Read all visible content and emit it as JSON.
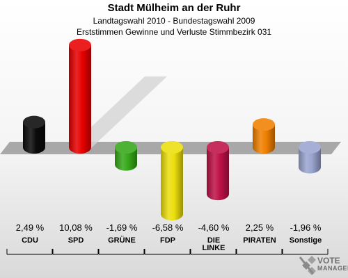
{
  "header": {
    "title": "Stadt Mülheim an der Ruhr",
    "subtitle": "Landtagswahl 2010 - Bundestagswahl 2009",
    "description": "Erststimmen Gewinne und Verluste Stimmbezirk 031"
  },
  "chart_data": {
    "type": "bar",
    "categories": [
      "CDU",
      "SPD",
      "GRÜNE",
      "FDP",
      "DIE LINKE",
      "PIRATEN",
      "Sonstige"
    ],
    "values": [
      2.49,
      10.08,
      -1.69,
      -6.58,
      -4.6,
      2.25,
      -1.96
    ],
    "value_labels": [
      "2,49 %",
      "10,08 %",
      "-1,69 %",
      "-6,58 %",
      "-4,60 %",
      "2,25 %",
      "-1,96 %"
    ],
    "colors": [
      "#0a0a0a",
      "#e80000",
      "#36a818",
      "#ecdf0c",
      "#be1148",
      "#f08000",
      "#9aa4cf"
    ],
    "title": "Stadt Mülheim an der Ruhr",
    "xlabel": "",
    "ylabel": "",
    "grid": false,
    "legend": "none"
  },
  "logo": {
    "line1": "VOTE",
    "line2": "MANAGER"
  }
}
